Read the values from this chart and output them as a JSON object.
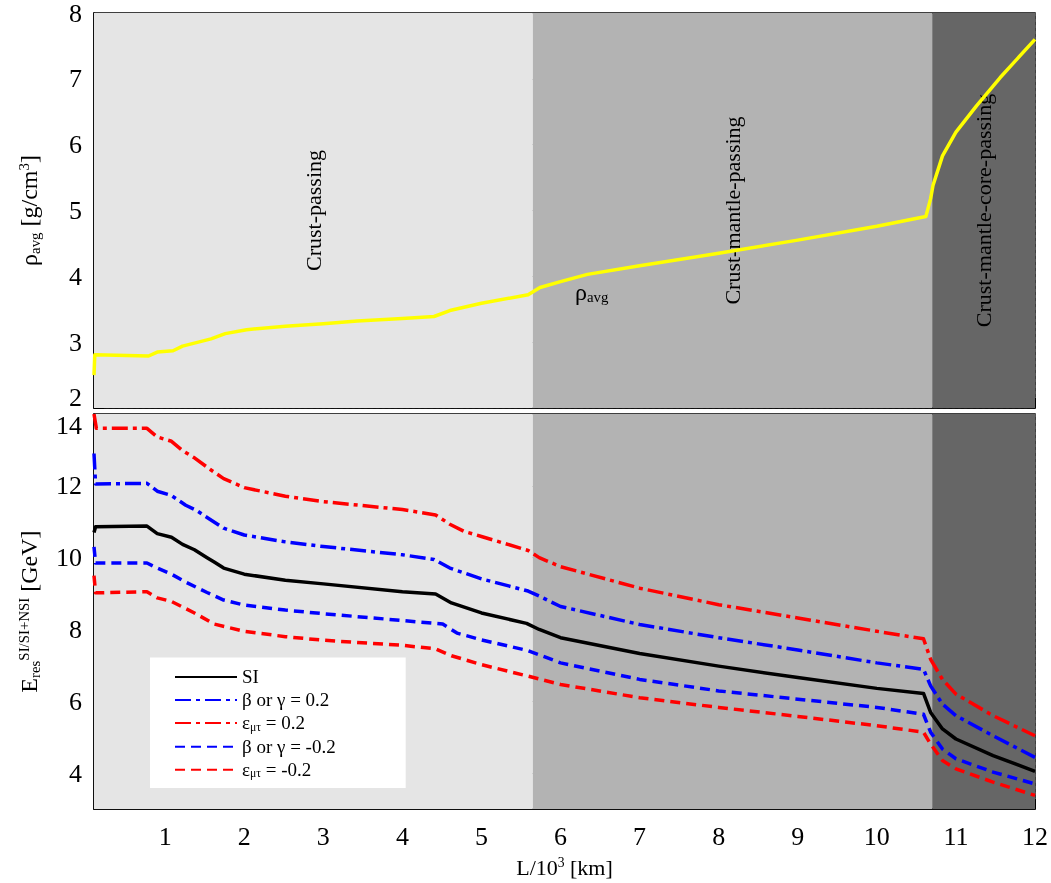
{
  "chart_data": [
    {
      "type": "line",
      "ylabel": "ρ$_{avg}$ [g/cm$^{3}$]",
      "xlim": [
        0.1,
        12
      ],
      "xticks": [
        1,
        2,
        3,
        4,
        5,
        6,
        7,
        8,
        9,
        10,
        11,
        12
      ],
      "ylim": [
        2,
        8
      ],
      "yticks": [
        2,
        3,
        4,
        5,
        6,
        7,
        8
      ],
      "grid": true,
      "tick_labels": "y",
      "bands": [
        {
          "axis": "x",
          "from": 0.1,
          "to": 5.65,
          "label": "Crust-passing",
          "color": "#e5e5e5"
        },
        {
          "axis": "x",
          "from": 5.65,
          "to": 10.7,
          "label": "Crust-mantle-passing",
          "color": "#b3b3b3"
        },
        {
          "axis": "x",
          "from": 10.7,
          "to": 12,
          "label": "Crust-mantle-core-passing",
          "color": "#666666"
        }
      ],
      "annotations": [
        "ρ$_{avg}$"
      ],
      "series": [
        {
          "color": "#ffff00",
          "line_style": "solid",
          "x": [
            0.1,
            0.11,
            0.79,
            0.9,
            1.1,
            1.22,
            1.58,
            1.76,
            2.03,
            2.52,
            3.0,
            3.43,
            4.0,
            4.4,
            4.6,
            5.0,
            5.59,
            5.74,
            6.0,
            6.34,
            7.0,
            8.0,
            9.0,
            10.0,
            10.62,
            10.68,
            10.71,
            10.83,
            11.0,
            11.26,
            11.56,
            12.0
          ],
          "values": [
            2.5,
            2.81,
            2.79,
            2.85,
            2.87,
            2.94,
            3.05,
            3.13,
            3.19,
            3.24,
            3.28,
            3.32,
            3.36,
            3.39,
            3.48,
            3.59,
            3.72,
            3.83,
            3.92,
            4.03,
            4.16,
            4.35,
            4.55,
            4.76,
            4.91,
            5.18,
            5.38,
            5.83,
            6.19,
            6.59,
            7.02,
            7.6
          ]
        }
      ]
    },
    {
      "type": "line",
      "xlabel": "L/10$^{3}$ [km]",
      "ylabel": "E$_{res}$$^{SI/SI+NSI}$ [GeV]",
      "xlim": [
        0.1,
        12
      ],
      "xticks": [
        1,
        2,
        3,
        4,
        5,
        6,
        7,
        8,
        9,
        10,
        11,
        12
      ],
      "ylim": [
        3,
        14
      ],
      "yticks": [
        4,
        6,
        8,
        10,
        12,
        14
      ],
      "grid": true,
      "legend": "bottom left",
      "bands": [
        {
          "axis": "x",
          "from": 0.1,
          "to": 5.65,
          "color": "#e5e5e5"
        },
        {
          "axis": "x",
          "from": 5.65,
          "to": 10.7,
          "color": "#b3b3b3"
        },
        {
          "axis": "x",
          "from": 10.7,
          "to": 12,
          "color": "#666666"
        }
      ],
      "series": [
        {
          "name": "SI",
          "color": "#000000",
          "line_style": "solid",
          "x": [
            0.1,
            0.12,
            0.77,
            0.9,
            1.08,
            1.22,
            1.37,
            1.53,
            1.62,
            1.74,
            2.0,
            2.52,
            3.0,
            4.0,
            4.42,
            4.62,
            5.0,
            5.57,
            5.73,
            6.0,
            7.0,
            8.0,
            9.0,
            10.0,
            10.59,
            10.68,
            10.83,
            11.0,
            11.47,
            12.0
          ],
          "values": [
            10.7,
            10.86,
            10.88,
            10.67,
            10.57,
            10.37,
            10.22,
            10.0,
            9.88,
            9.71,
            9.54,
            9.37,
            9.27,
            9.05,
            8.99,
            8.74,
            8.46,
            8.17,
            8.0,
            7.77,
            7.33,
            6.98,
            6.66,
            6.36,
            6.22,
            5.69,
            5.23,
            4.95,
            4.49,
            4.05
          ]
        },
        {
          "name": "β or γ = 0.2",
          "color": "#0000ff",
          "line_style": "dashdot",
          "x": [
            0.1,
            0.12,
            0.77,
            0.9,
            1.08,
            1.26,
            1.4,
            1.53,
            1.74,
            2.0,
            2.52,
            3.0,
            4.0,
            4.4,
            4.6,
            5.0,
            5.59,
            5.73,
            6.0,
            7.0,
            8.0,
            9.0,
            10.0,
            10.59,
            10.68,
            10.83,
            11.0,
            11.47,
            12.0
          ],
          "values": [
            12.9,
            12.05,
            12.07,
            11.85,
            11.73,
            11.46,
            11.31,
            11.12,
            10.82,
            10.63,
            10.44,
            10.31,
            10.08,
            9.95,
            9.71,
            9.41,
            9.07,
            8.93,
            8.64,
            8.14,
            7.77,
            7.43,
            7.07,
            6.89,
            6.43,
            5.92,
            5.6,
            5.04,
            4.44
          ]
        },
        {
          "name": "ε$_{μτ}$ = 0.2",
          "color": "#ff0000",
          "line_style": "dashdot",
          "x": [
            0.1,
            0.13,
            0.77,
            0.9,
            1.08,
            1.22,
            1.37,
            1.58,
            1.74,
            2.0,
            2.52,
            3.0,
            4.0,
            4.42,
            4.6,
            4.78,
            5.0,
            5.59,
            5.73,
            6.0,
            7.0,
            8.0,
            9.0,
            10.0,
            10.59,
            10.68,
            10.83,
            11.0,
            11.47,
            12.0
          ],
          "values": [
            14.0,
            13.6,
            13.6,
            13.36,
            13.24,
            12.98,
            12.78,
            12.44,
            12.2,
            11.95,
            11.71,
            11.56,
            11.34,
            11.19,
            10.93,
            10.73,
            10.59,
            10.2,
            10.0,
            9.75,
            9.15,
            8.69,
            8.32,
            7.95,
            7.74,
            7.17,
            6.61,
            6.2,
            5.6,
            5.04
          ]
        },
        {
          "name": "β or γ = -0.2",
          "color": "#0000ff",
          "line_style": "dashed",
          "x": [
            0.1,
            0.12,
            0.77,
            0.9,
            1.08,
            1.26,
            1.53,
            1.74,
            2.0,
            2.52,
            3.0,
            4.0,
            4.51,
            4.69,
            5.0,
            5.59,
            6.0,
            7.0,
            8.0,
            9.0,
            10.0,
            10.59,
            10.68,
            10.83,
            11.0,
            11.47,
            12.0
          ],
          "values": [
            10.3,
            9.85,
            9.85,
            9.71,
            9.54,
            9.32,
            9.03,
            8.82,
            8.68,
            8.54,
            8.44,
            8.25,
            8.15,
            7.9,
            7.71,
            7.41,
            7.07,
            6.61,
            6.29,
            6.06,
            5.83,
            5.64,
            5.14,
            4.67,
            4.4,
            4.03,
            3.7
          ]
        },
        {
          "name": "ε$_{μτ}$ = -0.2",
          "color": "#ff0000",
          "line_style": "dashed",
          "x": [
            0.1,
            0.12,
            0.77,
            0.9,
            1.08,
            1.37,
            1.62,
            2.0,
            2.52,
            3.0,
            4.0,
            4.42,
            4.62,
            5.0,
            5.59,
            6.0,
            7.0,
            8.0,
            9.0,
            10.0,
            10.59,
            10.68,
            10.83,
            11.0,
            11.47,
            12.0
          ],
          "values": [
            9.5,
            9.02,
            9.05,
            8.88,
            8.78,
            8.46,
            8.15,
            7.95,
            7.8,
            7.7,
            7.56,
            7.46,
            7.27,
            7.02,
            6.7,
            6.47,
            6.1,
            5.83,
            5.58,
            5.32,
            5.14,
            4.81,
            4.35,
            4.12,
            3.75,
            3.38
          ]
        }
      ]
    }
  ]
}
